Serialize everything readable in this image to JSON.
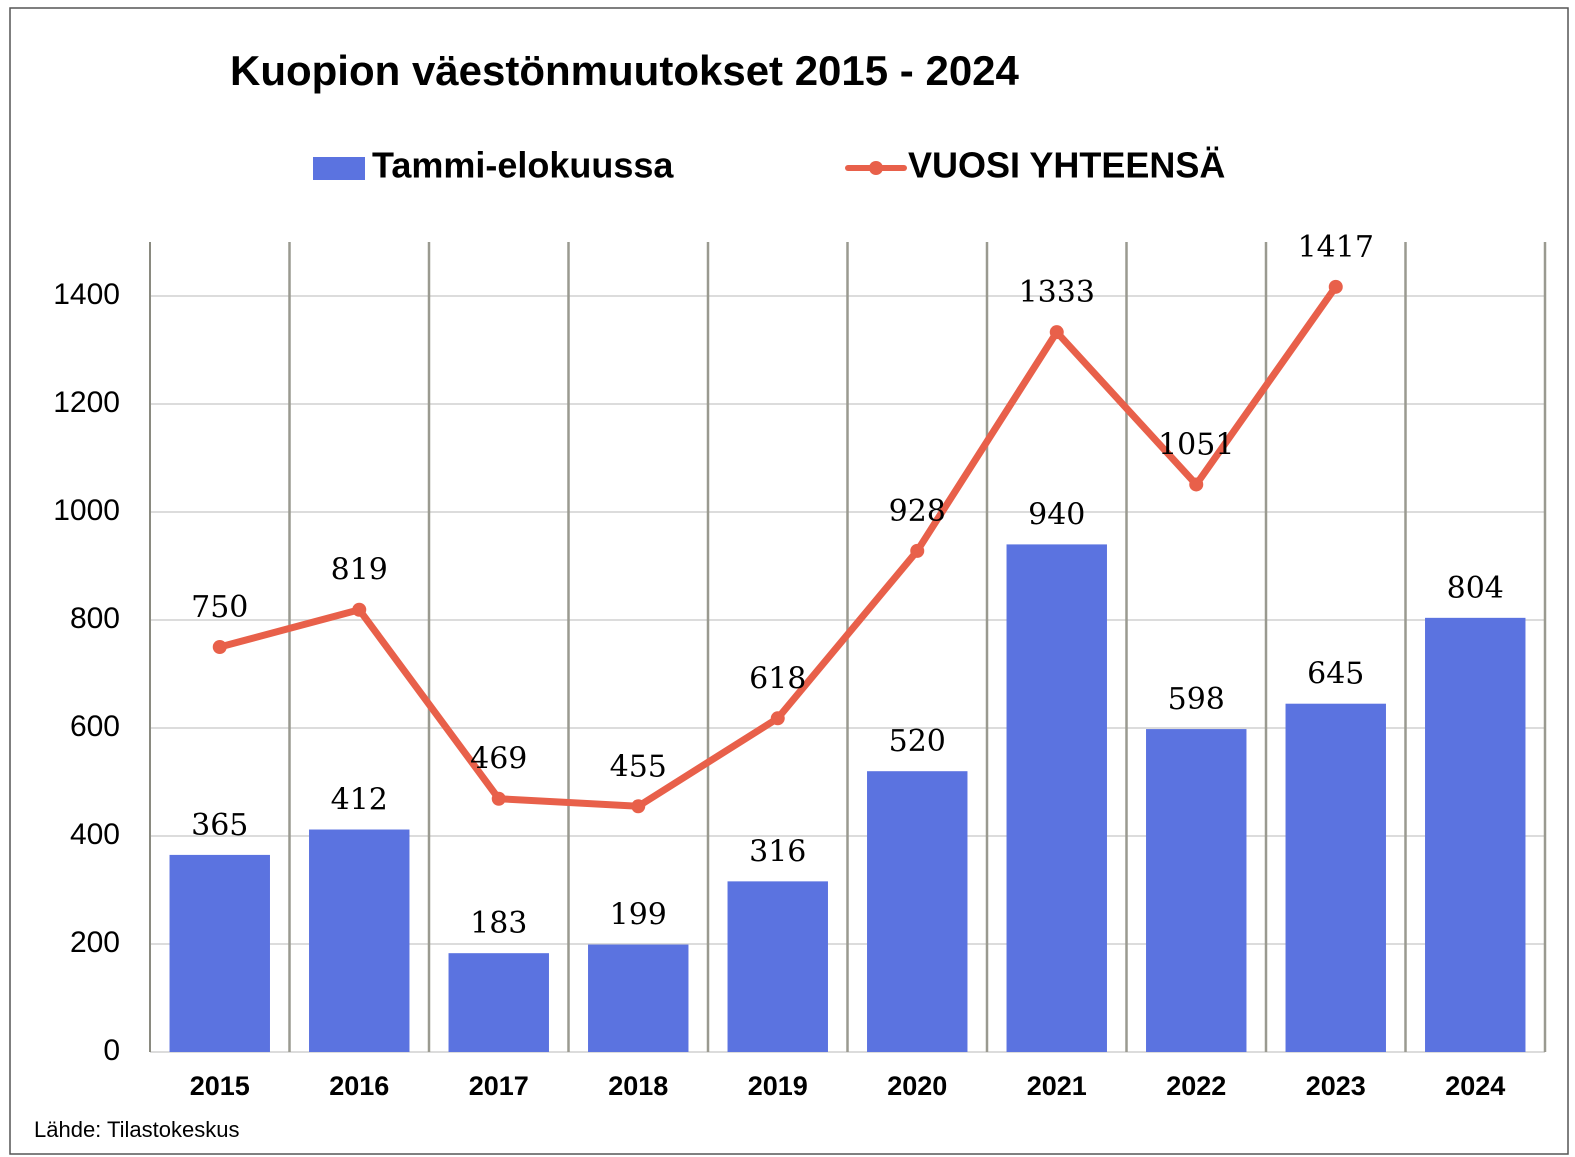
{
  "chart_data": {
    "type": "bar",
    "title": "Kuopion väestönmuutokset 2015 - 2024",
    "source": "Lähde: Tilastokeskus",
    "categories": [
      "2015",
      "2016",
      "2017",
      "2018",
      "2019",
      "2020",
      "2021",
      "2022",
      "2023",
      "2024"
    ],
    "series": [
      {
        "name": "Tammi-elokuussa",
        "type": "bar",
        "color": "#5b73e0",
        "values": [
          365,
          412,
          183,
          199,
          316,
          520,
          940,
          598,
          645,
          804
        ]
      },
      {
        "name": "VUOSI YHTEENSÄ",
        "type": "line",
        "color": "#e8604a",
        "values": [
          750,
          819,
          469,
          455,
          618,
          928,
          1333,
          1051,
          1417,
          null
        ]
      }
    ],
    "ylim": [
      0,
      1500
    ],
    "yticks": [
      0,
      200,
      400,
      600,
      800,
      1000,
      1200,
      1400
    ],
    "grid": true
  }
}
